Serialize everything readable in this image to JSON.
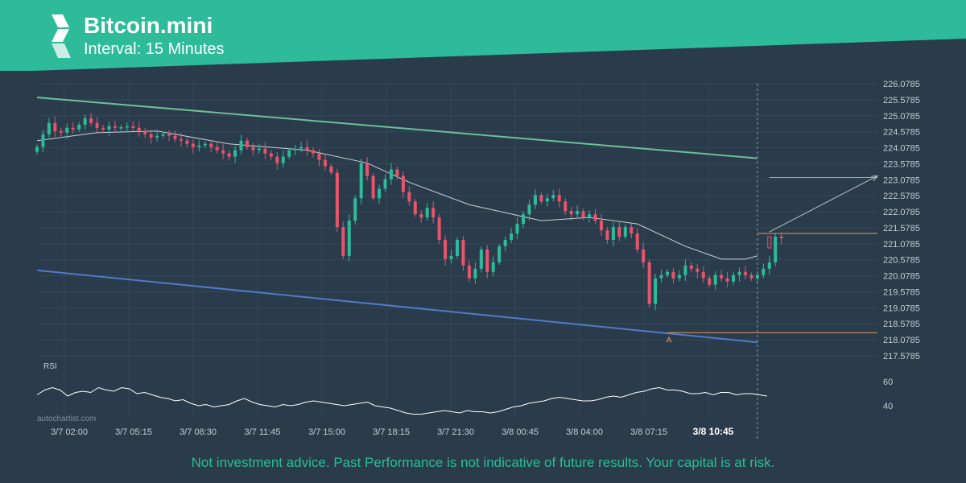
{
  "header": {
    "title": "Bitcoin.mini",
    "subtitle": "Interval: 15 Minutes",
    "brand_color": "#2dbb9a",
    "logo_icon": "autochartist-logo-icon"
  },
  "watermark": "autochartist.com",
  "footer": "Not investment advice. Past Performance is not indicative of future results. Your capital is at risk.",
  "colors": {
    "background": "#2a3c4b",
    "grid": "#34495a",
    "up_candle": "#2dbb9a",
    "down_candle": "#e8546b",
    "upper_channel": "#6fbf96",
    "lower_channel": "#4f7bc8",
    "levels": "#e8935a",
    "moving_average": "#c9d2d9",
    "rsi": "#ffffff",
    "axis_text": "#c3ccd4"
  },
  "chart_data": {
    "type": "candlestick",
    "title": "Bitcoin.mini",
    "subtitle": "Interval: 15 Minutes",
    "x_tick_labels": [
      "3/7 02:00",
      "3/7 05:15",
      "3/7 08:30",
      "3/7 11:45",
      "3/7 15:00",
      "3/7 18:15",
      "3/7 21:30",
      "3/8 00:45",
      "3/8 04:00",
      "3/8 07:15",
      "3/8 10:45"
    ],
    "y_tick_labels": [
      "226.0785",
      "225.5785",
      "225.0785",
      "224.5785",
      "224.0785",
      "223.5785",
      "223.0785",
      "222.5785",
      "222.0785",
      "221.5785",
      "221.0785",
      "220.5785",
      "220.0785",
      "219.5785",
      "219.0785",
      "218.5785",
      "218.0785",
      "217.5785"
    ],
    "ylim": [
      217.5785,
      226.0785
    ],
    "grid": true,
    "candles_close": [
      224.1,
      224.5,
      224.85,
      224.6,
      224.55,
      224.7,
      224.65,
      224.8,
      225.0,
      224.85,
      224.7,
      224.65,
      224.75,
      224.7,
      224.72,
      224.75,
      224.7,
      224.6,
      224.5,
      224.4,
      224.45,
      224.5,
      224.45,
      224.35,
      224.3,
      224.2,
      224.1,
      224.15,
      224.2,
      224.1,
      224.0,
      223.9,
      223.8,
      224.0,
      224.3,
      224.1,
      224.0,
      224.05,
      223.9,
      223.8,
      223.6,
      223.8,
      224.0,
      224.05,
      224.1,
      224.0,
      223.9,
      223.7,
      223.5,
      223.3,
      221.6,
      220.7,
      221.8,
      222.5,
      223.6,
      223.2,
      222.5,
      222.8,
      223.1,
      223.4,
      223.2,
      222.7,
      222.4,
      222.0,
      221.9,
      222.2,
      221.9,
      221.2,
      220.6,
      220.7,
      221.2,
      220.4,
      220.0,
      220.3,
      220.9,
      220.2,
      220.5,
      221.0,
      221.2,
      221.4,
      221.7,
      222.0,
      222.3,
      222.6,
      222.4,
      222.5,
      222.6,
      222.4,
      222.1,
      222.0,
      222.1,
      221.9,
      222.0,
      221.8,
      221.5,
      221.2,
      221.6,
      221.3,
      221.6,
      221.4,
      220.9,
      220.5,
      219.2,
      220.0,
      220.1,
      220.2,
      220.0,
      220.1,
      220.4,
      220.3,
      220.2,
      220.0,
      219.8,
      220.1,
      220.0,
      219.9,
      220.1,
      220.2,
      220.1,
      220.0,
      220.1,
      220.3,
      220.5,
      221.3,
      221.25
    ],
    "candles_shape": "OHLC per 15-minute bar; opens/highs/lows are derived from closes in the drawing script",
    "moving_average": {
      "points": [
        [
          0,
          224.3
        ],
        [
          10,
          224.55
        ],
        [
          20,
          224.6
        ],
        [
          32,
          224.2
        ],
        [
          45,
          224.0
        ],
        [
          55,
          223.6
        ],
        [
          62,
          223.0
        ],
        [
          72,
          222.3
        ],
        [
          84,
          221.8
        ],
        [
          92,
          221.9
        ],
        [
          100,
          221.7
        ],
        [
          108,
          221.0
        ],
        [
          114,
          220.6
        ],
        [
          118,
          220.6
        ],
        [
          120,
          220.7
        ]
      ]
    },
    "upper_channel": {
      "start": [
        0,
        225.65
      ],
      "end": [
        120,
        223.75
      ]
    },
    "lower_channel": {
      "start": [
        0,
        220.25
      ],
      "end": [
        120,
        218.0
      ]
    },
    "levels": [
      {
        "y": 218.3,
        "from_index": 105
      },
      {
        "y": 221.4,
        "from_index": 120
      },
      {
        "y": 223.15,
        "from_index": 122
      }
    ],
    "pattern_label": "A",
    "projection": {
      "from": [
        122,
        221.45
      ],
      "to": [
        140,
        223.2
      ]
    },
    "current_time_index": 120,
    "rsi": {
      "label": "RSI",
      "ticks": [
        "60",
        "40"
      ],
      "values": [
        49,
        53,
        55,
        53,
        48,
        51,
        52,
        51,
        55,
        53,
        52,
        55,
        54,
        50,
        51,
        49,
        47,
        46,
        44,
        45,
        42,
        40,
        41,
        39,
        40,
        41,
        44,
        46,
        43,
        41,
        40,
        39,
        41,
        40,
        41,
        43,
        44,
        43,
        42,
        41,
        40,
        41,
        42,
        43,
        40,
        39,
        38,
        36,
        34,
        33,
        33,
        34,
        35,
        36,
        35,
        34,
        36,
        35,
        35,
        34,
        35,
        37,
        39,
        40,
        42,
        43,
        44,
        46,
        47,
        46,
        45,
        44,
        44,
        45,
        47,
        48,
        47,
        49,
        51,
        52,
        54,
        55,
        53,
        53,
        52,
        50,
        50,
        51,
        49,
        51,
        51,
        49,
        50,
        50,
        49,
        48
      ]
    }
  }
}
